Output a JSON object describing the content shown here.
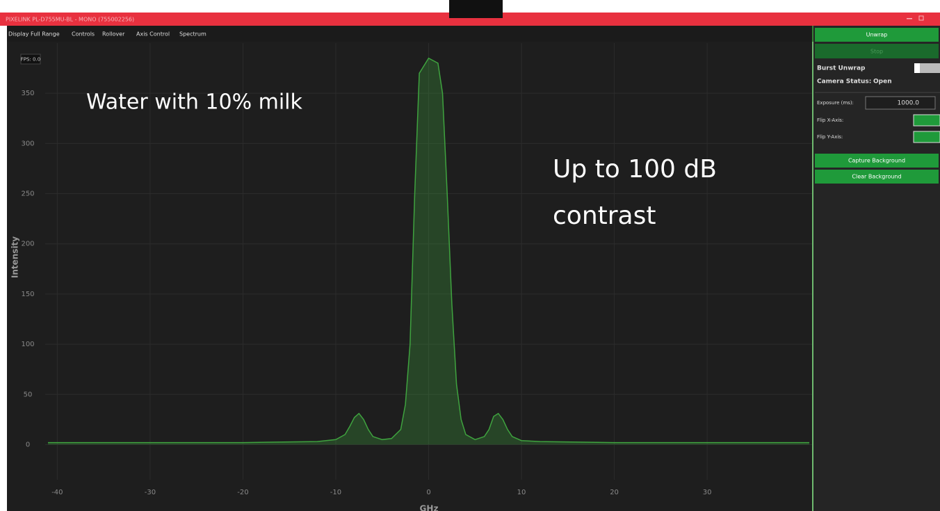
{
  "window": {
    "title": "PIXELINK PL-D755MU-BL - MONO (755002256)"
  },
  "menu": [
    "Display Full Range",
    "Controls",
    "Rollover",
    "Axis Control",
    "Spectrum"
  ],
  "fps": "FPS: 0.0",
  "panel": {
    "unwrap": "Unwrap",
    "stop": "Stop",
    "burst": "Burst Unwrap",
    "camera_status_label": "Camera Status:",
    "camera_status": "Open",
    "exposure_label": "Exposure (ms):",
    "exposure": "1000.0",
    "flip_x": "Flip X-Axis:",
    "flip_y": "Flip Y-Axis:",
    "capture": "Capture Background",
    "clear": "Clear Background"
  },
  "chart_data": {
    "type": "line",
    "xlabel": "GHz",
    "ylabel": "Intensity",
    "annotations": [
      {
        "lines": [
          "Water with 10% milk"
        ]
      },
      {
        "lines": [
          "Up to 100 dB",
          "contrast"
        ]
      }
    ],
    "x": [
      -41,
      -20,
      -12,
      -10,
      -9,
      -8.5,
      -8,
      -7.5,
      -7,
      -6.5,
      -6,
      -5,
      -4,
      -3,
      -2.5,
      -2,
      -1.5,
      -1,
      0,
      1,
      1.5,
      2,
      2.5,
      3,
      3.5,
      4,
      5,
      6,
      6.5,
      7,
      7.5,
      8,
      8.5,
      9,
      10,
      12,
      20,
      41
    ],
    "values": [
      2,
      2,
      3,
      5,
      10,
      18,
      27,
      31,
      25,
      15,
      8,
      5,
      6,
      15,
      40,
      100,
      250,
      370,
      385,
      380,
      350,
      250,
      140,
      60,
      25,
      10,
      5,
      8,
      15,
      28,
      31,
      25,
      15,
      8,
      4,
      3,
      2,
      2
    ],
    "color": "#3fa33f",
    "xlim": [
      -41.3,
      41.3
    ],
    "ylim": [
      -35,
      400
    ],
    "xticks": [
      -40,
      -30,
      -20,
      -10,
      0,
      10,
      20,
      30
    ],
    "yticks": [
      0,
      50,
      100,
      150,
      200,
      250,
      300,
      350
    ],
    "grid": true
  }
}
